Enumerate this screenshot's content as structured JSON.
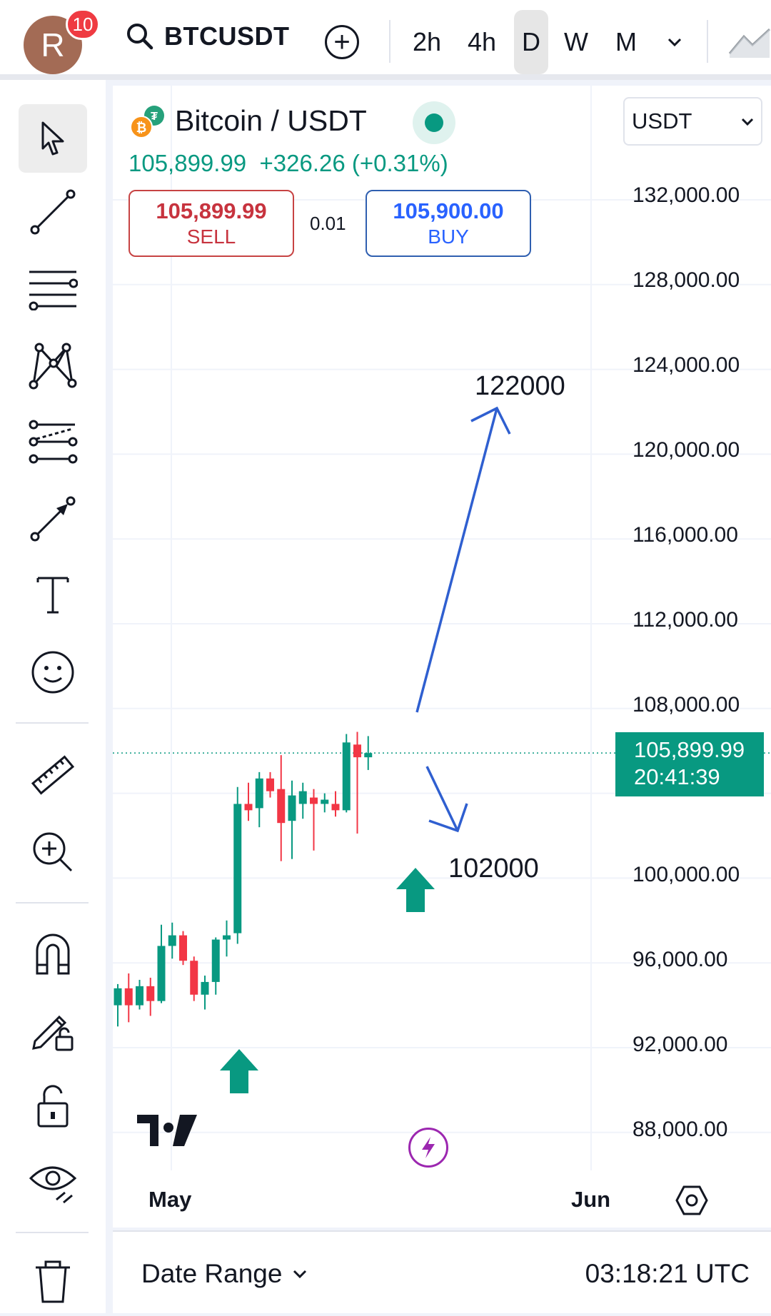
{
  "header": {
    "avatar_letter": "R",
    "notifications": "10",
    "symbol": "BTCUSDT",
    "timeframes": [
      "2h",
      "4h",
      "D",
      "W",
      "M"
    ],
    "active_timeframe": "D"
  },
  "legend": {
    "title": "Bitcoin / USDT",
    "price": "105,899.99",
    "change": "+326.26 (+0.31%)",
    "sell_price": "105,899.99",
    "sell_label": "SELL",
    "spread": "0.01",
    "buy_price": "105,900.00",
    "buy_label": "BUY"
  },
  "currency": "USDT",
  "price_axis": [
    "132,000.00",
    "128,000.00",
    "124,000.00",
    "120,000.00",
    "116,000.00",
    "112,000.00",
    "108,000.00",
    "100,000.00",
    "96,000.00",
    "92,000.00",
    "88,000.00"
  ],
  "last_price": {
    "price": "105,899.99",
    "countdown": "20:41:39"
  },
  "time_axis": [
    "May",
    "Jun"
  ],
  "annotations": {
    "target_up": "122000",
    "target_down": "102000"
  },
  "footer": {
    "date_range": "Date Range",
    "clock": "03:18:21 UTC"
  },
  "colors": {
    "up": "#089981",
    "down": "#f23645",
    "drawing": "#2f5fd0"
  },
  "chart_data": {
    "type": "candlestick",
    "ylim": [
      86000,
      135000
    ],
    "candles": [
      {
        "o": 94000,
        "h": 95000,
        "l": 93000,
        "c": 94800
      },
      {
        "o": 94800,
        "h": 95500,
        "l": 93200,
        "c": 94000
      },
      {
        "o": 94000,
        "h": 95200,
        "l": 93800,
        "c": 94900
      },
      {
        "o": 94900,
        "h": 95300,
        "l": 93500,
        "c": 94200
      },
      {
        "o": 94200,
        "h": 97800,
        "l": 94100,
        "c": 96800
      },
      {
        "o": 96800,
        "h": 97900,
        "l": 96200,
        "c": 97300
      },
      {
        "o": 97300,
        "h": 97500,
        "l": 95900,
        "c": 96100
      },
      {
        "o": 96100,
        "h": 96300,
        "l": 94200,
        "c": 94500
      },
      {
        "o": 94500,
        "h": 95400,
        "l": 93800,
        "c": 95100
      },
      {
        "o": 95100,
        "h": 97200,
        "l": 94500,
        "c": 97100
      },
      {
        "o": 97100,
        "h": 98000,
        "l": 96300,
        "c": 97300
      },
      {
        "o": 97400,
        "h": 104300,
        "l": 96900,
        "c": 103500
      },
      {
        "o": 103500,
        "h": 104500,
        "l": 102700,
        "c": 103200
      },
      {
        "o": 103300,
        "h": 105000,
        "l": 102400,
        "c": 104700
      },
      {
        "o": 104700,
        "h": 105000,
        "l": 103800,
        "c": 104100
      },
      {
        "o": 104200,
        "h": 105800,
        "l": 100800,
        "c": 102600
      },
      {
        "o": 102700,
        "h": 104600,
        "l": 100900,
        "c": 103900
      },
      {
        "o": 103500,
        "h": 104500,
        "l": 102800,
        "c": 104100
      },
      {
        "o": 103800,
        "h": 104200,
        "l": 101300,
        "c": 103500
      },
      {
        "o": 103500,
        "h": 104000,
        "l": 103100,
        "c": 103700
      },
      {
        "o": 103500,
        "h": 104100,
        "l": 102900,
        "c": 103200
      },
      {
        "o": 103200,
        "h": 106800,
        "l": 103100,
        "c": 106400
      },
      {
        "o": 106300,
        "h": 106900,
        "l": 102100,
        "c": 105700
      },
      {
        "o": 105700,
        "h": 106700,
        "l": 105100,
        "c": 105900
      }
    ]
  }
}
